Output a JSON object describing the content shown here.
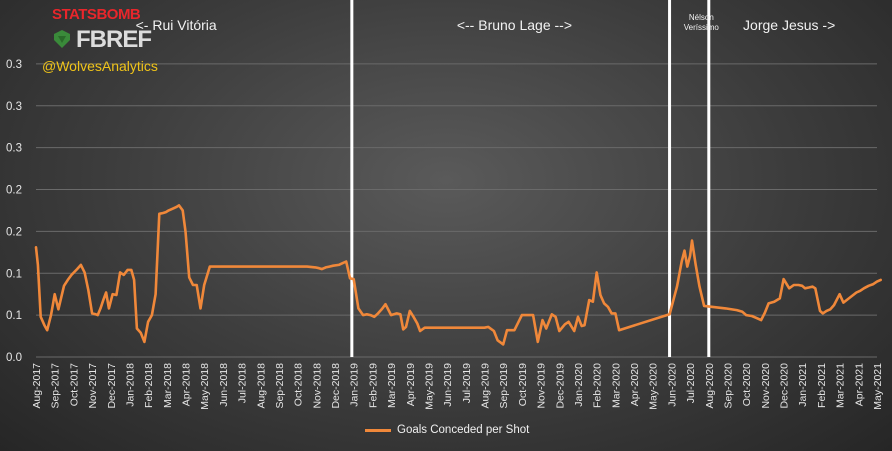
{
  "branding": {
    "logo_top": "STATSBOMB",
    "logo_bottom": "FBREF",
    "handle": "@WolvesAnalytics"
  },
  "chart_data": {
    "type": "line",
    "xlabel": "",
    "ylabel": "",
    "ylim": [
      0,
      0.4
    ],
    "y_ticks": [
      0.0,
      0.05,
      0.1,
      0.15,
      0.2,
      0.25,
      0.3,
      0.35
    ],
    "y_tick_labels": [
      "0.0",
      "0.1",
      "0.1",
      "0.2",
      "0.2",
      "0.3",
      "0.3",
      "0.3"
    ],
    "x_tick_labels": [
      "Aug-2017",
      "Sep-2017",
      "Oct-2017",
      "Nov-2017",
      "Dec-2017",
      "Jan-2018",
      "Feb-2018",
      "Mar-2018",
      "Apr-2018",
      "May-2018",
      "Jun-2018",
      "Jul-2018",
      "Aug-2018",
      "Sep-2018",
      "Oct-2018",
      "Nov-2018",
      "Dec-2018",
      "Jan-2019",
      "Feb-2019",
      "Mar-2019",
      "Apr-2019",
      "May-2019",
      "Jun-2019",
      "Jul-2019",
      "Aug-2019",
      "Sep-2019",
      "Oct-2019",
      "Nov-2019",
      "Dec-2019",
      "Jan-2020",
      "Feb-2020",
      "Mar-2020",
      "Apr-2020",
      "May-2020",
      "Jun-2020",
      "Jul-2020",
      "Aug-2020",
      "Sep-2020",
      "Oct-2020",
      "Nov-2020",
      "Dec-2020",
      "Jan-2021",
      "Feb-2021",
      "Mar-2021",
      "Apr-2021",
      "May-2021"
    ],
    "grid": true,
    "legend": "bottom",
    "line_color": "#f0883a",
    "series": [
      {
        "name": "Goals Conceded per Shot",
        "x": [
          0.0,
          0.1,
          0.25,
          0.45,
          0.6,
          0.8,
          0.9,
          1.0,
          1.2,
          1.5,
          1.7,
          1.9,
          2.2,
          2.4,
          2.6,
          2.8,
          3.0,
          3.2,
          3.3,
          3.45,
          3.6,
          3.75,
          3.9,
          4.1,
          4.3,
          4.5,
          4.7,
          4.9,
          5.1,
          5.25,
          5.4,
          5.6,
          5.8,
          6.0,
          6.2,
          6.4,
          6.6,
          6.8,
          6.95,
          7.1,
          7.3,
          7.5,
          7.65,
          7.85,
          8.0,
          8.2,
          8.4,
          8.6,
          8.8,
          9.0,
          9.3,
          12.5,
          12.75,
          12.9,
          13.0,
          13.2,
          13.45,
          13.55,
          13.7,
          13.85,
          14.1,
          14.35,
          14.5,
          14.95,
          15.15,
          15.3,
          15.5,
          15.7,
          15.9,
          16.2,
          16.4,
          16.6,
          16.8,
          17.0,
          17.25,
          17.5,
          17.7,
          17.9,
          18.1,
          18.3,
          18.5,
          18.7,
          19.0,
          19.3,
          19.5,
          19.65,
          19.8,
          20.0,
          20.2,
          20.4,
          20.55,
          20.8,
          24.0,
          24.2,
          24.5,
          24.7,
          25.0,
          25.2,
          25.4,
          25.6,
          26.0,
          26.4,
          26.6,
          26.85,
          27.1,
          27.3,
          27.6,
          27.8,
          28.0,
          28.3,
          28.5,
          28.8,
          29.0,
          29.2,
          29.35,
          29.6,
          29.8,
          30.0,
          30.2,
          30.4,
          30.6,
          30.8,
          31.0,
          31.2,
          33.9,
          34.3,
          34.55,
          34.7,
          34.85,
          35.0,
          35.1,
          35.3,
          35.5,
          35.75,
          36.9,
          37.5,
          37.8,
          38.0,
          38.3,
          38.5,
          38.8,
          39.0,
          39.2,
          39.5,
          39.8,
          40.0,
          40.3,
          40.55,
          40.8,
          41.0,
          41.15,
          41.35,
          41.55,
          41.7,
          41.95,
          42.1,
          42.3,
          42.5,
          42.7,
          43.0,
          43.2,
          43.9,
          44.1,
          44.3,
          44.55,
          44.8,
          45.0,
          45.2
        ],
        "y": [
          0.131,
          0.11,
          0.048,
          0.038,
          0.032,
          0.05,
          0.062,
          0.075,
          0.057,
          0.085,
          0.092,
          0.098,
          0.105,
          0.11,
          0.101,
          0.08,
          0.052,
          0.051,
          0.05,
          0.058,
          0.068,
          0.077,
          0.058,
          0.075,
          0.074,
          0.101,
          0.098,
          0.104,
          0.104,
          0.092,
          0.034,
          0.029,
          0.018,
          0.042,
          0.05,
          0.075,
          0.171,
          0.172,
          0.173,
          0.175,
          0.177,
          0.179,
          0.181,
          0.175,
          0.15,
          0.095,
          0.086,
          0.086,
          0.058,
          0.086,
          0.108,
          0.108,
          0.108,
          0.108,
          0.108,
          0.108,
          0.108,
          0.108,
          0.108,
          0.108,
          0.108,
          0.108,
          0.108,
          0.107,
          0.106,
          0.105,
          0.107,
          0.108,
          0.109,
          0.11,
          0.112,
          0.114,
          0.094,
          0.093,
          0.058,
          0.05,
          0.051,
          0.05,
          0.048,
          0.052,
          0.057,
          0.063,
          0.05,
          0.052,
          0.051,
          0.033,
          0.036,
          0.055,
          0.048,
          0.04,
          0.031,
          0.035,
          0.035,
          0.036,
          0.031,
          0.02,
          0.015,
          0.032,
          0.032,
          0.032,
          0.05,
          0.05,
          0.05,
          0.018,
          0.044,
          0.034,
          0.051,
          0.048,
          0.031,
          0.039,
          0.042,
          0.031,
          0.048,
          0.037,
          0.038,
          0.068,
          0.066,
          0.101,
          0.074,
          0.064,
          0.06,
          0.052,
          0.052,
          0.032,
          0.051,
          0.084,
          0.114,
          0.127,
          0.108,
          0.121,
          0.139,
          0.11,
          0.084,
          0.061,
          0.058,
          0.056,
          0.054,
          0.05,
          0.049,
          0.047,
          0.044,
          0.053,
          0.064,
          0.066,
          0.07,
          0.093,
          0.082,
          0.086,
          0.086,
          0.085,
          0.082,
          0.083,
          0.084,
          0.082,
          0.055,
          0.052,
          0.055,
          0.057,
          0.062,
          0.075,
          0.065,
          0.077,
          0.079,
          0.082,
          0.085,
          0.087,
          0.09,
          0.092
        ]
      }
    ],
    "annotations": [
      {
        "text": "<- Rui Vitória",
        "x": 7.5
      },
      {
        "text": "<-- Bruno Lage -->",
        "x": 25.6
      },
      {
        "text": "Nélson",
        "x": 35.6
      },
      {
        "text": "Veríssimo",
        "x": 35.6
      },
      {
        "text": "Jorge Jesus ->",
        "x": 40.3
      }
    ],
    "dividers": [
      16.9,
      33.9,
      36.0
    ]
  }
}
